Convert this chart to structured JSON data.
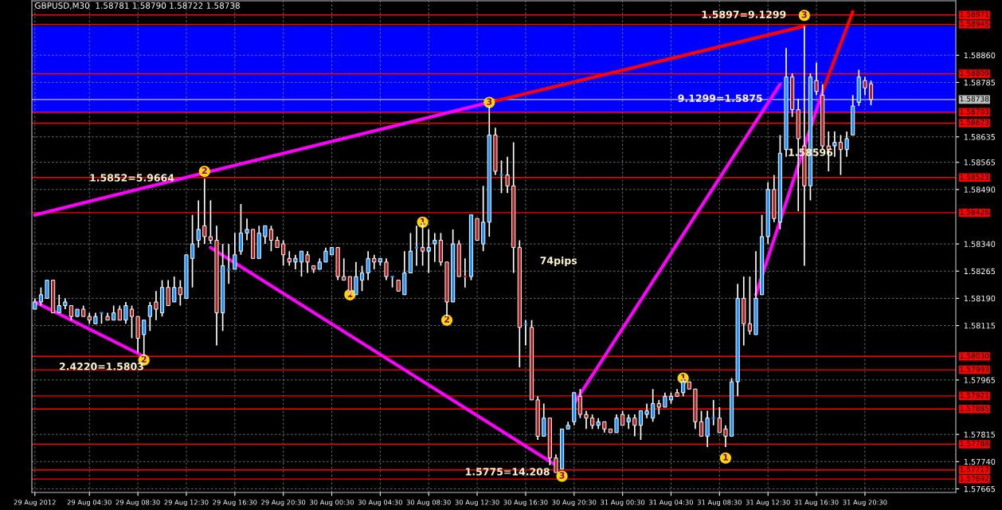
{
  "chart_data": {
    "type": "candlestick",
    "title": "GBPUSD,M30  1.58781 1.58790 1.58722 1.58738",
    "x": [
      "2012-08-29T00:00",
      "2012-08-29T00:30",
      "2012-08-29T01:00",
      "2012-08-29T01:30",
      "2012-08-29T02:00",
      "2012-08-29T02:30",
      "2012-08-29T03:00",
      "2012-08-29T03:30",
      "2012-08-29T04:00",
      "2012-08-29T04:30",
      "2012-08-29T05:00",
      "2012-08-29T05:30",
      "2012-08-29T06:00",
      "2012-08-29T06:30",
      "2012-08-29T07:00",
      "2012-08-29T07:30",
      "2012-08-29T08:00",
      "2012-08-29T08:30",
      "2012-08-29T09:00",
      "2012-08-29T09:30",
      "2012-08-29T10:00",
      "2012-08-29T10:30",
      "2012-08-29T11:00",
      "2012-08-29T11:30",
      "2012-08-29T12:00",
      "2012-08-29T12:30",
      "2012-08-29T13:00",
      "2012-08-29T13:30",
      "2012-08-29T14:00",
      "2012-08-29T14:30",
      "2012-08-29T15:00",
      "2012-08-29T15:30",
      "2012-08-29T16:00",
      "2012-08-29T16:30",
      "2012-08-29T17:00",
      "2012-08-29T17:30",
      "2012-08-29T18:00",
      "2012-08-29T18:30",
      "2012-08-29T19:00",
      "2012-08-29T19:30",
      "2012-08-29T20:00",
      "2012-08-29T20:30",
      "2012-08-29T21:00",
      "2012-08-29T21:30",
      "2012-08-29T22:00",
      "2012-08-29T22:30",
      "2012-08-29T23:00",
      "2012-08-29T23:30",
      "2012-08-30T00:00",
      "2012-08-30T00:30",
      "2012-08-30T01:00",
      "2012-08-30T01:30",
      "2012-08-30T02:00",
      "2012-08-30T02:30",
      "2012-08-30T03:00",
      "2012-08-30T03:30",
      "2012-08-30T04:00",
      "2012-08-30T04:30",
      "2012-08-30T05:00",
      "2012-08-30T05:30",
      "2012-08-30T06:00",
      "2012-08-30T06:30",
      "2012-08-30T07:00",
      "2012-08-30T07:30",
      "2012-08-30T08:00",
      "2012-08-30T08:30",
      "2012-08-30T09:00",
      "2012-08-30T09:30",
      "2012-08-30T10:00",
      "2012-08-30T10:30",
      "2012-08-30T11:00",
      "2012-08-30T11:30",
      "2012-08-30T12:00",
      "2012-08-30T12:30",
      "2012-08-30T13:00",
      "2012-08-30T13:30",
      "2012-08-30T14:00",
      "2012-08-30T14:30",
      "2012-08-30T15:00",
      "2012-08-30T15:30",
      "2012-08-30T16:00",
      "2012-08-30T16:30",
      "2012-08-30T17:00",
      "2012-08-30T17:30",
      "2012-08-30T18:00",
      "2012-08-30T18:30",
      "2012-08-30T19:00",
      "2012-08-30T19:30",
      "2012-08-30T20:00",
      "2012-08-30T20:30",
      "2012-08-30T21:00",
      "2012-08-30T21:30",
      "2012-08-30T22:00",
      "2012-08-30T22:30",
      "2012-08-30T23:00",
      "2012-08-30T23:30",
      "2012-08-31T00:00",
      "2012-08-31T00:30",
      "2012-08-31T01:00",
      "2012-08-31T01:30",
      "2012-08-31T02:00",
      "2012-08-31T02:30",
      "2012-08-31T03:00",
      "2012-08-31T03:30",
      "2012-08-31T04:00",
      "2012-08-31T04:30",
      "2012-08-31T05:00",
      "2012-08-31T05:30",
      "2012-08-31T06:00",
      "2012-08-31T06:30",
      "2012-08-31T07:00",
      "2012-08-31T07:30",
      "2012-08-31T08:00",
      "2012-08-31T08:30",
      "2012-08-31T09:00",
      "2012-08-31T09:30",
      "2012-08-31T10:00",
      "2012-08-31T10:30",
      "2012-08-31T11:00",
      "2012-08-31T11:30",
      "2012-08-31T12:00",
      "2012-08-31T12:30",
      "2012-08-31T13:00",
      "2012-08-31T13:30",
      "2012-08-31T14:00",
      "2012-08-31T14:30",
      "2012-08-31T15:00",
      "2012-08-31T15:30",
      "2012-08-31T16:00",
      "2012-08-31T16:30",
      "2012-08-31T17:00",
      "2012-08-31T17:30",
      "2012-08-31T18:00",
      "2012-08-31T18:30",
      "2012-08-31T19:00",
      "2012-08-31T19:30",
      "2012-08-31T20:00",
      "2012-08-31T20:30",
      "2012-08-31T21:00"
    ],
    "ohlc": [
      [
        1.5816,
        1.5819,
        1.5816,
        1.5818
      ],
      [
        1.5818,
        1.5822,
        1.5817,
        1.582
      ],
      [
        1.5819,
        1.5824,
        1.5819,
        1.5824
      ],
      [
        1.5824,
        1.5824,
        1.5815,
        1.5815
      ],
      [
        1.5815,
        1.582,
        1.5815,
        1.5817
      ],
      [
        1.5817,
        1.5819,
        1.5816,
        1.5818
      ],
      [
        1.5817,
        1.5817,
        1.5813,
        1.5814
      ],
      [
        1.5814,
        1.5816,
        1.5814,
        1.5816
      ],
      [
        1.5816,
        1.5817,
        1.5814,
        1.5814
      ],
      [
        1.5814,
        1.5815,
        1.5812,
        1.5813
      ],
      [
        1.5812,
        1.5815,
        1.5812,
        1.5814
      ],
      [
        1.5815,
        1.5815,
        1.5812,
        1.5815
      ],
      [
        1.5814,
        1.5815,
        1.5813,
        1.5813
      ],
      [
        1.5813,
        1.5817,
        1.5813,
        1.5815
      ],
      [
        1.5816,
        1.5817,
        1.5813,
        1.5813
      ],
      [
        1.5813,
        1.5818,
        1.5812,
        1.5817
      ],
      [
        1.5816,
        1.5817,
        1.5808,
        1.5814
      ],
      [
        1.5814,
        1.5814,
        1.5804,
        1.5808
      ],
      [
        1.5809,
        1.5813,
        1.5803,
        1.5813
      ],
      [
        1.5814,
        1.5818,
        1.581,
        1.5817
      ],
      [
        1.5818,
        1.5821,
        1.5813,
        1.5816
      ],
      [
        1.5815,
        1.5824,
        1.5814,
        1.5822
      ],
      [
        1.5822,
        1.5824,
        1.5817,
        1.5817
      ],
      [
        1.5818,
        1.5825,
        1.5818,
        1.5822
      ],
      [
        1.5822,
        1.5824,
        1.5817,
        1.582
      ],
      [
        1.5819,
        1.5831,
        1.5819,
        1.5831
      ],
      [
        1.583,
        1.5842,
        1.5822,
        1.5834
      ],
      [
        1.5835,
        1.5846,
        1.5833,
        1.5838
      ],
      [
        1.5839,
        1.5852,
        1.5834,
        1.5836
      ],
      [
        1.5836,
        1.5846,
        1.5834,
        1.5835
      ],
      [
        1.5835,
        1.5839,
        1.5806,
        1.5815
      ],
      [
        1.5815,
        1.5834,
        1.581,
        1.5828
      ],
      [
        1.5827,
        1.5834,
        1.5823,
        1.5827
      ],
      [
        1.5827,
        1.5837,
        1.5827,
        1.5831
      ],
      [
        1.5832,
        1.5845,
        1.5831,
        1.5837
      ],
      [
        1.5837,
        1.5841,
        1.5835,
        1.5838
      ],
      [
        1.5838,
        1.5838,
        1.583,
        1.583
      ],
      [
        1.583,
        1.5839,
        1.583,
        1.5837
      ],
      [
        1.5836,
        1.5839,
        1.5834,
        1.5839
      ],
      [
        1.5838,
        1.5839,
        1.5832,
        1.5835
      ],
      [
        1.5835,
        1.5836,
        1.5833,
        1.5833
      ],
      [
        1.5834,
        1.5835,
        1.5828,
        1.5831
      ],
      [
        1.583,
        1.5832,
        1.5828,
        1.5829
      ],
      [
        1.5829,
        1.5831,
        1.5827,
        1.583
      ],
      [
        1.5829,
        1.5832,
        1.5825,
        1.5832
      ],
      [
        1.5831,
        1.5832,
        1.5826,
        1.5829
      ],
      [
        1.5828,
        1.5828,
        1.5826,
        1.5827
      ],
      [
        1.5827,
        1.583,
        1.5827,
        1.5829
      ],
      [
        1.5829,
        1.5833,
        1.5829,
        1.5832
      ],
      [
        1.5831,
        1.5833,
        1.5831,
        1.5833
      ],
      [
        1.5833,
        1.5833,
        1.5824,
        1.5825
      ],
      [
        1.5825,
        1.583,
        1.5824,
        1.5824
      ],
      [
        1.5825,
        1.5825,
        1.582,
        1.5821
      ],
      [
        1.582,
        1.5829,
        1.582,
        1.5825
      ],
      [
        1.5824,
        1.5828,
        1.5821,
        1.5826
      ],
      [
        1.5826,
        1.5832,
        1.5824,
        1.583
      ],
      [
        1.583,
        1.5831,
        1.5827,
        1.5829
      ],
      [
        1.5829,
        1.583,
        1.5828,
        1.583
      ],
      [
        1.5829,
        1.583,
        1.5824,
        1.5825
      ],
      [
        1.5825,
        1.5825,
        1.5822,
        1.5825
      ],
      [
        1.5824,
        1.5824,
        1.5821,
        1.5821
      ],
      [
        1.582,
        1.5832,
        1.582,
        1.5826
      ],
      [
        1.5826,
        1.5837,
        1.5826,
        1.5832
      ],
      [
        1.5833,
        1.5839,
        1.5828,
        1.5833
      ],
      [
        1.5833,
        1.584,
        1.5828,
        1.5832
      ],
      [
        1.5832,
        1.5838,
        1.5826,
        1.5833
      ],
      [
        1.5834,
        1.5837,
        1.5829,
        1.5835
      ],
      [
        1.5835,
        1.5837,
        1.5828,
        1.5829
      ],
      [
        1.5829,
        1.5829,
        1.5814,
        1.5818
      ],
      [
        1.5818,
        1.5838,
        1.5818,
        1.5834
      ],
      [
        1.5834,
        1.5835,
        1.5825,
        1.5825
      ],
      [
        1.5825,
        1.583,
        1.5822,
        1.5825
      ],
      [
        1.5825,
        1.5842,
        1.5824,
        1.5842
      ],
      [
        1.5841,
        1.5841,
        1.5835,
        1.5835
      ],
      [
        1.5834,
        1.585,
        1.5832,
        1.584
      ],
      [
        1.584,
        1.5872,
        1.5836,
        1.5864
      ],
      [
        1.5864,
        1.5866,
        1.5853,
        1.5854
      ],
      [
        1.5853,
        1.5857,
        1.5848,
        1.5853
      ],
      [
        1.5853,
        1.5858,
        1.5848,
        1.585
      ],
      [
        1.585,
        1.5862,
        1.5826,
        1.5833
      ],
      [
        1.5833,
        1.5835,
        1.58,
        1.5811
      ],
      [
        1.5812,
        1.5813,
        1.5806,
        1.5812
      ],
      [
        1.5811,
        1.5813,
        1.5791,
        1.5791
      ],
      [
        1.5791,
        1.5792,
        1.578,
        1.5781
      ],
      [
        1.5781,
        1.579,
        1.5781,
        1.5786
      ],
      [
        1.5786,
        1.5786,
        1.5773,
        1.5775
      ],
      [
        1.5775,
        1.5776,
        1.5771,
        1.5771
      ],
      [
        1.5772,
        1.5783,
        1.5772,
        1.5783
      ],
      [
        1.5783,
        1.5785,
        1.5783,
        1.5784
      ],
      [
        1.5785,
        1.5793,
        1.5784,
        1.5793
      ],
      [
        1.5792,
        1.5794,
        1.5786,
        1.5787
      ],
      [
        1.5787,
        1.5788,
        1.5783,
        1.5786
      ],
      [
        1.5786,
        1.5787,
        1.5783,
        1.5784
      ],
      [
        1.5784,
        1.5786,
        1.5783,
        1.5785
      ],
      [
        1.5785,
        1.5785,
        1.5782,
        1.5783
      ],
      [
        1.5783,
        1.5783,
        1.5782,
        1.5782
      ],
      [
        1.5782,
        1.5787,
        1.5782,
        1.5786
      ],
      [
        1.5787,
        1.5788,
        1.5784,
        1.5784
      ],
      [
        1.5785,
        1.5787,
        1.5783,
        1.5786
      ],
      [
        1.5786,
        1.5787,
        1.5781,
        1.5784
      ],
      [
        1.5784,
        1.5788,
        1.578,
        1.5788
      ],
      [
        1.5787,
        1.579,
        1.5786,
        1.5788
      ],
      [
        1.5786,
        1.5794,
        1.5785,
        1.579
      ],
      [
        1.579,
        1.5791,
        1.5787,
        1.5789
      ],
      [
        1.5789,
        1.5793,
        1.5789,
        1.5792
      ],
      [
        1.5791,
        1.5793,
        1.579,
        1.5792
      ],
      [
        1.5793,
        1.5794,
        1.5792,
        1.5792
      ],
      [
        1.5793,
        1.5797,
        1.5792,
        1.5796
      ],
      [
        1.5796,
        1.5796,
        1.5794,
        1.5794
      ],
      [
        1.5794,
        1.5794,
        1.5783,
        1.5785
      ],
      [
        1.5785,
        1.5788,
        1.5781,
        1.5781
      ],
      [
        1.5781,
        1.5788,
        1.5778,
        1.5786
      ],
      [
        1.5786,
        1.5791,
        1.5784,
        1.5786
      ],
      [
        1.5786,
        1.5789,
        1.5782,
        1.5782
      ],
      [
        1.5783,
        1.5784,
        1.5778,
        1.5781
      ],
      [
        1.5781,
        1.5797,
        1.5781,
        1.5796
      ],
      [
        1.5796,
        1.5823,
        1.5792,
        1.5819
      ],
      [
        1.5819,
        1.5825,
        1.5806,
        1.5812
      ],
      [
        1.5812,
        1.5825,
        1.5809,
        1.581
      ],
      [
        1.5809,
        1.5832,
        1.5809,
        1.5819
      ],
      [
        1.582,
        1.5842,
        1.582,
        1.5836
      ],
      [
        1.5836,
        1.5851,
        1.5834,
        1.5849
      ],
      [
        1.5849,
        1.5853,
        1.584,
        1.5841
      ],
      [
        1.584,
        1.5864,
        1.5838,
        1.5859
      ],
      [
        1.586,
        1.5888,
        1.5858,
        1.588
      ],
      [
        1.588,
        1.5881,
        1.5869,
        1.5871
      ],
      [
        1.5871,
        1.5874,
        1.5843,
        1.5863
      ],
      [
        1.5861,
        1.5894,
        1.5828,
        1.585
      ],
      [
        1.585,
        1.5881,
        1.5846,
        1.588
      ],
      [
        1.5879,
        1.5884,
        1.5875,
        1.5876
      ],
      [
        1.5875,
        1.5878,
        1.586,
        1.5861
      ],
      [
        1.5861,
        1.5865,
        1.5854,
        1.586
      ],
      [
        1.5861,
        1.5865,
        1.5858,
        1.5862
      ],
      [
        1.5862,
        1.5864,
        1.5853,
        1.586
      ],
      [
        1.586,
        1.5865,
        1.5858,
        1.5863
      ],
      [
        1.5864,
        1.5875,
        1.5864,
        1.5872
      ],
      [
        1.5873,
        1.5882,
        1.5872,
        1.588
      ],
      [
        1.5879,
        1.588,
        1.5875,
        1.5877
      ],
      [
        1.58781,
        1.5879,
        1.58722,
        1.58738
      ]
    ],
    "colors": [
      "#1e90ff",
      "#1e90ff",
      "#1e90ff",
      "#b22222",
      "#1e90ff",
      "#1e90ff",
      "#b22222",
      "#1e90ff",
      "#b22222",
      "#b22222",
      "#1e90ff",
      "#1e90ff",
      "#b22222",
      "#1e90ff",
      "#b22222",
      "#1e90ff",
      "#b22222",
      "#b22222",
      "#1e90ff",
      "#1e90ff",
      "#b22222",
      "#1e90ff",
      "#b22222",
      "#1e90ff",
      "#b22222",
      "#1e90ff",
      "#1e90ff",
      "#1e90ff",
      "#b22222",
      "#b22222",
      "#b22222",
      "#1e90ff",
      "#1e90ff",
      "#1e90ff",
      "#1e90ff",
      "#1e90ff",
      "#b22222",
      "#1e90ff",
      "#1e90ff",
      "#b22222",
      "#b22222",
      "#b22222",
      "#b22222",
      "#1e90ff",
      "#1e90ff",
      "#b22222",
      "#b22222",
      "#1e90ff",
      "#1e90ff",
      "#1e90ff",
      "#b22222",
      "#b22222",
      "#b22222",
      "#1e90ff",
      "#1e90ff",
      "#1e90ff",
      "#b22222",
      "#1e90ff",
      "#b22222",
      "#1e90ff",
      "#b22222",
      "#1e90ff",
      "#1e90ff",
      "#1e90ff",
      "#b22222",
      "#1e90ff",
      "#1e90ff",
      "#b22222",
      "#b22222",
      "#1e90ff",
      "#b22222",
      "#b22222",
      "#1e90ff",
      "#b22222",
      "#1e90ff",
      "#1e90ff",
      "#b22222",
      "#1e90ff",
      "#b22222",
      "#b22222",
      "#b22222",
      "#1e90ff",
      "#b22222",
      "#b22222",
      "#1e90ff",
      "#b22222",
      "#b22222",
      "#1e90ff",
      "#1e90ff",
      "#1e90ff",
      "#b22222",
      "#b22222",
      "#b22222",
      "#1e90ff",
      "#b22222",
      "#b22222",
      "#1e90ff",
      "#b22222",
      "#1e90ff",
      "#b22222",
      "#1e90ff",
      "#1e90ff",
      "#1e90ff",
      "#b22222",
      "#1e90ff",
      "#1e90ff",
      "#b22222",
      "#1e90ff",
      "#b22222",
      "#b22222",
      "#b22222",
      "#1e90ff",
      "#1e90ff",
      "#b22222",
      "#b22222",
      "#1e90ff",
      "#1e90ff",
      "#b22222",
      "#b22222",
      "#1e90ff",
      "#1e90ff",
      "#1e90ff",
      "#b22222",
      "#1e90ff",
      "#1e90ff",
      "#b22222",
      "#b22222",
      "#b22222",
      "#1e90ff",
      "#b22222",
      "#b22222",
      "#b22222",
      "#1e90ff",
      "#b22222",
      "#1e90ff",
      "#1e90ff",
      "#1e90ff",
      "#b22222",
      "#b22222"
    ],
    "series": [
      {
        "type": "line",
        "color": "#ff00ff",
        "x": [
          "2012-08-29T00:00",
          "2012-08-30T13:30"
        ],
        "values": [
          1.5842,
          1.5873
        ]
      },
      {
        "type": "line",
        "color": "#ff0000",
        "x": [
          "2012-08-30T13:30",
          "2012-08-31T15:30"
        ],
        "values": [
          1.5873,
          1.5894
        ]
      },
      {
        "type": "line",
        "color": "#ff00ff",
        "x": [
          "2012-08-29T00:00",
          "2012-08-29T09:00"
        ],
        "values": [
          1.5818,
          1.5803
        ]
      },
      {
        "type": "line",
        "color": "#ff00ff",
        "x": [
          "2012-08-29T14:30",
          "2012-08-30T19:00"
        ],
        "values": [
          1.5833,
          1.5773
        ]
      },
      {
        "type": "line",
        "color": "#ff00ff",
        "x": [
          "2012-08-30T20:30",
          "2012-08-31T13:30"
        ],
        "values": [
          1.579,
          1.5878
        ]
      },
      {
        "type": "line",
        "color": "#ff00ff",
        "x": [
          "2012-08-31T11:30",
          "2012-08-31T17:00"
        ],
        "values": [
          1.582,
          1.5876
        ]
      },
      {
        "type": "line",
        "color": "#ff0000",
        "x": [
          "2012-08-31T17:00",
          "2012-08-31T19:30"
        ],
        "values": [
          1.5876,
          1.5898
        ]
      }
    ],
    "bands": [
      {
        "axis": "y",
        "from": 1.587,
        "to": 1.5894,
        "color": "#0000ff"
      }
    ],
    "ref_lines": [
      {
        "axis": "y",
        "value": 1.58971,
        "label": "1.58971",
        "color": "#ff0000"
      },
      {
        "axis": "y",
        "value": 1.58945,
        "label": "1.58945",
        "color": "#ff0000"
      },
      {
        "axis": "y",
        "value": 1.58809,
        "label": "1.58809",
        "color": "#ff0000"
      },
      {
        "axis": "y",
        "value": 1.58738,
        "label": "1.58738",
        "color": "#c0c0c0"
      },
      {
        "axis": "y",
        "value": 1.58703,
        "label": "1.58703",
        "color": "#ff0000"
      },
      {
        "axis": "y",
        "value": 1.58673,
        "label": "1.58673",
        "color": "#ff0000"
      },
      {
        "axis": "y",
        "value": 1.58523,
        "label": "1.58523",
        "color": "#ff0000"
      },
      {
        "axis": "y",
        "value": 1.58426,
        "label": "1.58426",
        "color": "#ff0000"
      },
      {
        "axis": "y",
        "value": 1.5803,
        "label": "1.58030",
        "color": "#ff0000"
      },
      {
        "axis": "y",
        "value": 1.57993,
        "label": "1.57993",
        "color": "#ff0000"
      },
      {
        "axis": "y",
        "value": 1.57921,
        "label": "1.57921",
        "color": "#ff0000"
      },
      {
        "axis": "y",
        "value": 1.57885,
        "label": "1.57885",
        "color": "#ff0000"
      },
      {
        "axis": "y",
        "value": 1.57788,
        "label": "1.57788",
        "color": "#ff0000"
      },
      {
        "axis": "y",
        "value": 1.57717,
        "label": "1.57717",
        "color": "#ff0000"
      },
      {
        "axis": "y",
        "value": 1.57692,
        "label": "1.57692",
        "color": "#ff0000"
      }
    ],
    "annotations": [
      {
        "text": "1.5897=9.1299",
        "x": "2012-08-31T10:30",
        "y": 1.5897
      },
      "9.1299=1.5875",
      {
        "text": "1.5852=5.9664",
        "x": "2012-08-29T08:00",
        "y": 1.5852
      },
      {
        "text": "2.4220=1.5803",
        "x": "2012-08-29T05:30",
        "y": 1.58
      },
      {
        "text": "1.5775=14.208",
        "x": "2012-08-30T15:00",
        "y": 1.5771
      },
      "74pips",
      {
        "text": "1.58596",
        "x": "2012-08-31T16:00",
        "y": 1.5859
      },
      {
        "text": "3",
        "x": "2012-08-30T13:30",
        "y": 1.5873
      },
      {
        "text": "3",
        "x": "2012-08-31T15:30",
        "y": 1.5897
      },
      {
        "text": "3",
        "x": "2012-08-30T19:30",
        "y": 1.577
      },
      {
        "text": "2",
        "x": "2012-08-29T14:00",
        "y": 1.5854
      },
      {
        "text": "2",
        "x": "2012-08-29T09:00",
        "y": 1.5802
      },
      {
        "text": "2",
        "x": "2012-08-30T10:00",
        "y": 1.5813
      },
      {
        "text": "1",
        "x": "2012-08-30T08:00",
        "y": 1.584
      },
      {
        "text": "1",
        "x": "2012-08-30T02:00",
        "y": 1.582
      },
      {
        "text": "1",
        "x": "2012-08-31T05:30",
        "y": 1.5797
      },
      {
        "text": "1",
        "x": "2012-08-31T09:00",
        "y": 1.5775
      }
    ],
    "xlim": [
      "2012-08-28T23:45",
      "2012-09-01T04:00"
    ],
    "ylim": [
      1.57655,
      1.5901
    ],
    "xticks": [
      {
        "value": "2012-08-29T00:00",
        "label": "29 Aug 2012"
      },
      {
        "value": "2012-08-29T04:30",
        "label": "29 Aug 04:30"
      },
      {
        "value": "2012-08-29T08:30",
        "label": "29 Aug 08:30"
      },
      {
        "value": "2012-08-29T12:30",
        "label": "29 Aug 12:30"
      },
      {
        "value": "2012-08-29T16:30",
        "label": "29 Aug 16:30"
      },
      {
        "value": "2012-08-29T20:30",
        "label": "29 Aug 20:30"
      },
      {
        "value": "2012-08-30T00:30",
        "label": "30 Aug 00:30"
      },
      {
        "value": "2012-08-30T04:30",
        "label": "30 Aug 04:30"
      },
      {
        "value": "2012-08-30T08:30",
        "label": "30 Aug 08:30"
      },
      {
        "value": "2012-08-30T12:30",
        "label": "30 Aug 12:30"
      },
      {
        "value": "2012-08-30T16:30",
        "label": "30 Aug 16:30"
      },
      {
        "value": "2012-08-30T20:30",
        "label": "30 Aug 20:30"
      },
      {
        "value": "2012-08-31T00:30",
        "label": "31 Aug 00:30"
      },
      {
        "value": "2012-08-31T04:30",
        "label": "31 Aug 04:30"
      },
      {
        "value": "2012-08-31T08:30",
        "label": "31 Aug 08:30"
      },
      {
        "value": "2012-08-31T12:30",
        "label": "31 Aug 12:30"
      },
      {
        "value": "2012-08-31T16:30",
        "label": "31 Aug 16:30"
      },
      {
        "value": "2012-08-31T20:30",
        "label": "31 Aug 20:30"
      }
    ],
    "yticks": [
      {
        "value": 1.5886,
        "label": "1.58860"
      },
      1.58785,
      1.58635,
      1.58565,
      {
        "value": 1.5849,
        "label": "1.58490"
      },
      {
        "value": 1.5834,
        "label": "1.58340"
      },
      1.58265,
      {
        "value": 1.5819,
        "label": "1.58190"
      },
      1.58115,
      1.57965,
      1.57815,
      {
        "value": 1.5774,
        "label": "1.57740"
      },
      1.57665
    ],
    "grid": true
  }
}
